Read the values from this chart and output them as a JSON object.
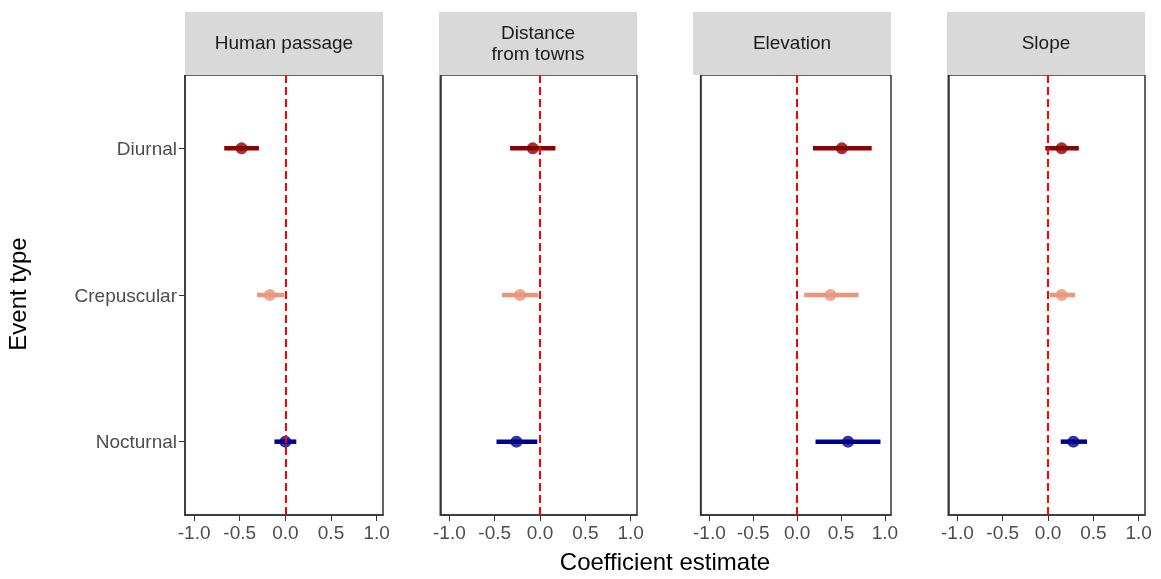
{
  "chart_data": [
    {
      "type": "scatter",
      "title": "Human passage",
      "ylabel": "Event type",
      "orientation": "horizontal",
      "categories": [
        "Diurnal",
        "Crepuscular",
        "Nocturnal"
      ],
      "values": [
        -0.48,
        -0.17,
        0.0
      ],
      "errors": [
        [
          -0.67,
          -0.29
        ],
        [
          -0.31,
          -0.01
        ],
        [
          -0.12,
          0.12
        ]
      ],
      "colors": [
        "#8b0000",
        "#e9967a",
        "#00008b"
      ],
      "marker": "circle",
      "xlim": [
        -1.1,
        1.07
      ],
      "xticks": [
        {
          "value": -1,
          "label": "-1.0"
        },
        {
          "value": -0.5,
          "label": "-0.5"
        },
        {
          "value": 0,
          "label": "0.0"
        },
        {
          "value": 0.5,
          "label": "0.5"
        },
        {
          "value": 1,
          "label": "1.0"
        }
      ],
      "ref_lines": [
        {
          "axis": "x",
          "value": 0,
          "color": "#ff0000",
          "line_style": "dashed"
        }
      ],
      "grid": false
    },
    {
      "type": "scatter",
      "title": "Distance\nfrom towns",
      "xlabel": "Coefficient estimate",
      "orientation": "horizontal",
      "categories": [
        null,
        null,
        null
      ],
      "values": [
        -0.08,
        -0.22,
        -0.26
      ],
      "errors": [
        [
          -0.33,
          0.17
        ],
        [
          -0.42,
          -0.02
        ],
        [
          -0.48,
          -0.03
        ]
      ],
      "colors": [
        "#8b0000",
        "#e9967a",
        "#00008b"
      ],
      "marker": "circle",
      "xlim": [
        -1.1,
        1.07
      ],
      "xticks": [
        {
          "value": -1,
          "label": "-1.0"
        },
        {
          "value": -0.5,
          "label": "-0.5"
        },
        {
          "value": 0,
          "label": "0.0"
        },
        {
          "value": 0.5,
          "label": "0.5"
        },
        {
          "value": 1,
          "label": "1.0"
        }
      ],
      "ref_lines": [
        {
          "axis": "x",
          "value": 0,
          "color": "#ff0000",
          "line_style": "dashed"
        }
      ],
      "grid": false,
      "tick_labels": "x"
    },
    {
      "type": "scatter",
      "title": "Elevation",
      "orientation": "horizontal",
      "categories": [
        null,
        null,
        null
      ],
      "values": [
        0.51,
        0.38,
        0.58
      ],
      "errors": [
        [
          0.18,
          0.85
        ],
        [
          0.08,
          0.7
        ],
        [
          0.21,
          0.95
        ]
      ],
      "colors": [
        "#8b0000",
        "#e9967a",
        "#00008b"
      ],
      "marker": "circle",
      "xlim": [
        -1.1,
        1.07
      ],
      "xticks": [
        {
          "value": -1,
          "label": "-1.0"
        },
        {
          "value": -0.5,
          "label": "-0.5"
        },
        {
          "value": 0,
          "label": "0.0"
        },
        {
          "value": 0.5,
          "label": "0.5"
        },
        {
          "value": 1,
          "label": "1.0"
        }
      ],
      "ref_lines": [
        {
          "axis": "x",
          "value": 0,
          "color": "#ff0000",
          "line_style": "dashed"
        }
      ],
      "grid": false,
      "tick_labels": "x"
    },
    {
      "type": "scatter",
      "title": "Slope",
      "orientation": "horizontal",
      "categories": [
        null,
        null,
        null
      ],
      "values": [
        0.15,
        0.15,
        0.28
      ],
      "errors": [
        [
          -0.03,
          0.34
        ],
        [
          0.02,
          0.3
        ],
        [
          0.14,
          0.43
        ]
      ],
      "colors": [
        "#8b0000",
        "#e9967a",
        "#00008b"
      ],
      "marker": "circle",
      "xlim": [
        -1.1,
        1.07
      ],
      "xticks": [
        {
          "value": -1,
          "label": "-1.0"
        },
        {
          "value": -0.5,
          "label": "-0.5"
        },
        {
          "value": 0,
          "label": "0.0"
        },
        {
          "value": 0.5,
          "label": "0.5"
        },
        {
          "value": 1,
          "label": "1.0"
        }
      ],
      "ref_lines": [
        {
          "axis": "x",
          "value": 0,
          "color": "#ff0000",
          "line_style": "dashed"
        }
      ],
      "grid": false,
      "tick_labels": "x"
    }
  ]
}
